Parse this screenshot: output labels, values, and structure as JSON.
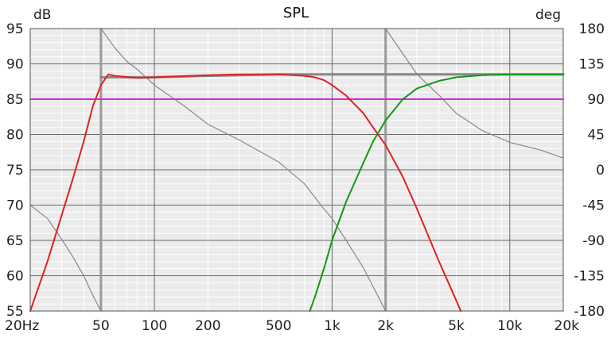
{
  "chart_data": {
    "type": "line",
    "title": "SPL",
    "ylabel_left": "dB",
    "ylabel_right": "deg",
    "x_scale": "log",
    "xlim": [
      20,
      20000
    ],
    "ylim": [
      55,
      95
    ],
    "ylim_right": [
      -180,
      180
    ],
    "grid": true,
    "x_ticks": [
      {
        "value": 20,
        "label": "20Hz"
      },
      {
        "value": 50,
        "label": "50"
      },
      {
        "value": 100,
        "label": "100"
      },
      {
        "value": 200,
        "label": "200"
      },
      {
        "value": 500,
        "label": "500"
      },
      {
        "value": 1000,
        "label": "1k"
      },
      {
        "value": 2000,
        "label": "2k"
      },
      {
        "value": 5000,
        "label": "5k"
      },
      {
        "value": 10000,
        "label": "10k"
      },
      {
        "value": 20000,
        "label": "20k"
      }
    ],
    "y_ticks": [
      "95",
      "90",
      "85",
      "80",
      "75",
      "70",
      "65",
      "60",
      "55"
    ],
    "y_ticks_right": [
      "180",
      "135",
      "90",
      "45",
      "0",
      "-45",
      "-90",
      "-135",
      "-180"
    ],
    "highlighted_frequencies": [
      50,
      2000
    ],
    "series": [
      {
        "color": "#dd2222",
        "axis": "left",
        "x": [
          20,
          25,
          30,
          35,
          40,
          45,
          50,
          55,
          60,
          80,
          100,
          200,
          300,
          500,
          700,
          800,
          900,
          1000,
          1200,
          1500,
          1700,
          2000,
          2500,
          3000,
          3500,
          4000,
          5000,
          5300
        ],
        "y": [
          55,
          62,
          68.5,
          74,
          79,
          84,
          87,
          88.5,
          88.3,
          88.0,
          88.1,
          88.4,
          88.5,
          88.5,
          88.3,
          88.1,
          87.7,
          87,
          85.5,
          83,
          81,
          78.5,
          74,
          69.5,
          65.5,
          62,
          56.5,
          55
        ]
      },
      {
        "color": "#119911",
        "axis": "left",
        "x": [
          750,
          800,
          900,
          1000,
          1200,
          1500,
          1700,
          2000,
          2500,
          3000,
          4000,
          5000,
          7000,
          10000,
          20000
        ],
        "y": [
          55,
          57,
          61,
          65,
          70.5,
          76,
          79,
          82,
          85,
          86.5,
          87.6,
          88.1,
          88.4,
          88.5,
          88.5
        ]
      },
      {
        "color": "#888888",
        "axis": "left",
        "x": [
          50,
          100,
          200,
          500,
          1000,
          2000,
          5000,
          10000,
          20000
        ],
        "y": [
          88.1,
          88.1,
          88.3,
          88.5,
          88.5,
          88.5,
          88.5,
          88.5,
          88.5
        ]
      },
      {
        "color": "#dd22dd",
        "axis": "left",
        "x": [
          20,
          20000
        ],
        "y": [
          85,
          85
        ]
      },
      {
        "color": "#888888",
        "axis": "right",
        "x": [
          20,
          25,
          30,
          35,
          40,
          45,
          50
        ],
        "y": [
          -45,
          -62,
          -88,
          -112,
          -135,
          -160,
          -180
        ]
      },
      {
        "color": "#888888",
        "axis": "right",
        "x": [
          50,
          60,
          70,
          80,
          100,
          150,
          200,
          300,
          500,
          700,
          900,
          1000,
          1200,
          1500,
          2000
        ],
        "y": [
          180,
          155,
          138,
          128,
          108,
          80,
          58,
          38,
          10,
          -18,
          -50,
          -62,
          -90,
          -125,
          -180
        ]
      },
      {
        "color": "#888888",
        "axis": "right",
        "x": [
          2000,
          2500,
          3000,
          4000,
          5000,
          7000,
          10000,
          15000,
          20000
        ],
        "y": [
          180,
          148,
          122,
          95,
          72,
          50,
          35,
          25,
          15
        ]
      }
    ]
  }
}
